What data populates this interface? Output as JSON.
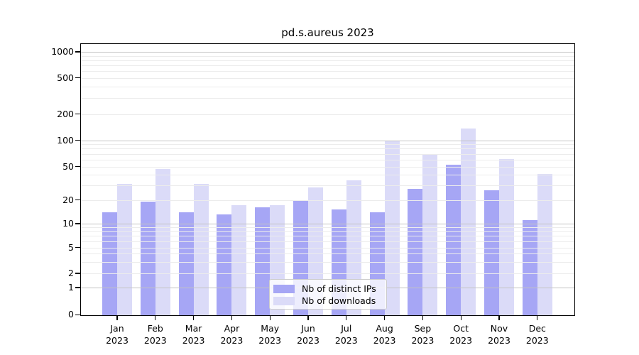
{
  "title": "pd.s.aureus 2023",
  "colors": {
    "ips": "#a6a6f5",
    "downloads": "#dbdbf8",
    "grid_major": "#c3c3c3",
    "grid_minor": "#ececec",
    "axis": "#000000",
    "legend_border": "#cccccc"
  },
  "legend": {
    "items": [
      {
        "key": "ips",
        "label": "Nb of distinct IPs"
      },
      {
        "key": "downloads",
        "label": "Nb of downloads"
      }
    ]
  },
  "chart_data": {
    "type": "bar",
    "title": "pd.s.aureus 2023",
    "categories": [
      "Jan 2023",
      "Feb 2023",
      "Mar 2023",
      "Apr 2023",
      "May 2023",
      "Jun 2023",
      "Jul 2023",
      "Aug 2023",
      "Sep 2023",
      "Oct 2023",
      "Nov 2023",
      "Dec 2023"
    ],
    "series": [
      {
        "name": "Nb of distinct IPs",
        "color_key": "ips",
        "values": [
          14,
          19,
          14,
          13,
          16,
          20,
          15,
          14,
          27,
          52,
          26,
          11
        ]
      },
      {
        "name": "Nb of downloads",
        "color_key": "downloads",
        "values": [
          31,
          47,
          31,
          17,
          17,
          28,
          34,
          97,
          68,
          135,
          61,
          41
        ]
      }
    ],
    "xlabel": "",
    "ylabel": "",
    "y_scale": "pseudo-log (0 pinned at baseline)",
    "y_ticks": [
      0,
      1,
      2,
      5,
      10,
      20,
      50,
      100,
      200,
      500,
      1000
    ],
    "ylim": [
      0,
      1250
    ],
    "grid": true,
    "grid_major_at": [
      1,
      10,
      100,
      1000
    ],
    "legend_position": "lower center"
  }
}
